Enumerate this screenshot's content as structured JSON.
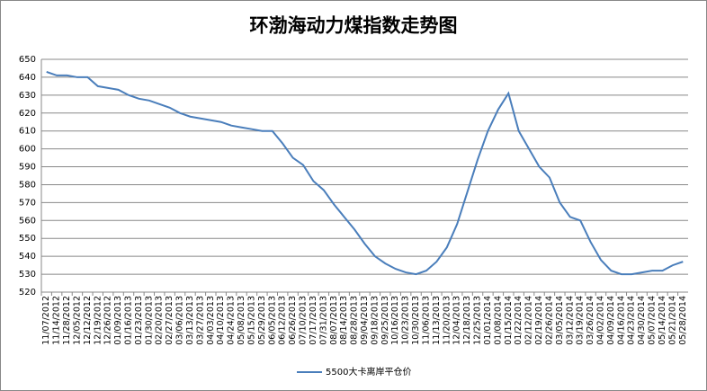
{
  "chart_data": {
    "type": "line",
    "title": "环渤海动力煤指数走势图",
    "categories": [
      "11/07/2012",
      "11/14/2012",
      "11/28/2012",
      "12/05/2012",
      "12/12/2012",
      "12/19/2012",
      "12/26/2012",
      "01/09/2013",
      "01/16/2013",
      "01/23/2013",
      "01/30/2013",
      "02/20/2013",
      "02/27/2013",
      "03/06/2013",
      "03/13/2013",
      "03/27/2013",
      "04/03/2013",
      "04/10/2013",
      "04/24/2013",
      "05/08/2013",
      "05/15/2013",
      "05/29/2013",
      "06/05/2013",
      "06/12/2013",
      "06/26/2013",
      "07/10/2013",
      "07/17/2013",
      "07/31/2013",
      "08/07/2013",
      "08/14/2013",
      "08/28/2013",
      "09/04/2013",
      "09/18/2013",
      "09/25/2013",
      "10/16/2013",
      "10/23/2013",
      "10/30/2013",
      "11/06/2013",
      "11/13/2013",
      "11/20/2013",
      "12/04/2013",
      "12/18/2013",
      "12/25/2013",
      "01/01/2014",
      "01/08/2014",
      "01/15/2014",
      "01/22/2014",
      "02/12/2014",
      "02/19/2014",
      "02/26/2014",
      "03/05/2014",
      "03/12/2014",
      "03/19/2014",
      "03/26/2014",
      "04/02/2014",
      "04/09/2014",
      "04/16/2014",
      "04/23/2014",
      "04/30/2014",
      "05/07/2014",
      "05/14/2014",
      "05/21/2014",
      "05/28/2014"
    ],
    "series": [
      {
        "name": "5500大卡离岸平仓价",
        "color": "#4a7ebb",
        "values": [
          643,
          641,
          641,
          640,
          640,
          635,
          634,
          633,
          630,
          628,
          627,
          625,
          623,
          620,
          618,
          617,
          616,
          615,
          613,
          612,
          611,
          610,
          610,
          603,
          595,
          591,
          582,
          577,
          569,
          562,
          555,
          547,
          540,
          536,
          533,
          531,
          530,
          532,
          537,
          545,
          558,
          576,
          594,
          610,
          622,
          631,
          610,
          600,
          590,
          584,
          570,
          562,
          560,
          548,
          538,
          532,
          530,
          530,
          531,
          532,
          532,
          535,
          537
        ]
      }
    ],
    "ylim": [
      520,
      650
    ],
    "yticks": [
      520,
      530,
      540,
      550,
      560,
      570,
      580,
      590,
      600,
      610,
      620,
      630,
      640,
      650
    ],
    "grid": true
  }
}
